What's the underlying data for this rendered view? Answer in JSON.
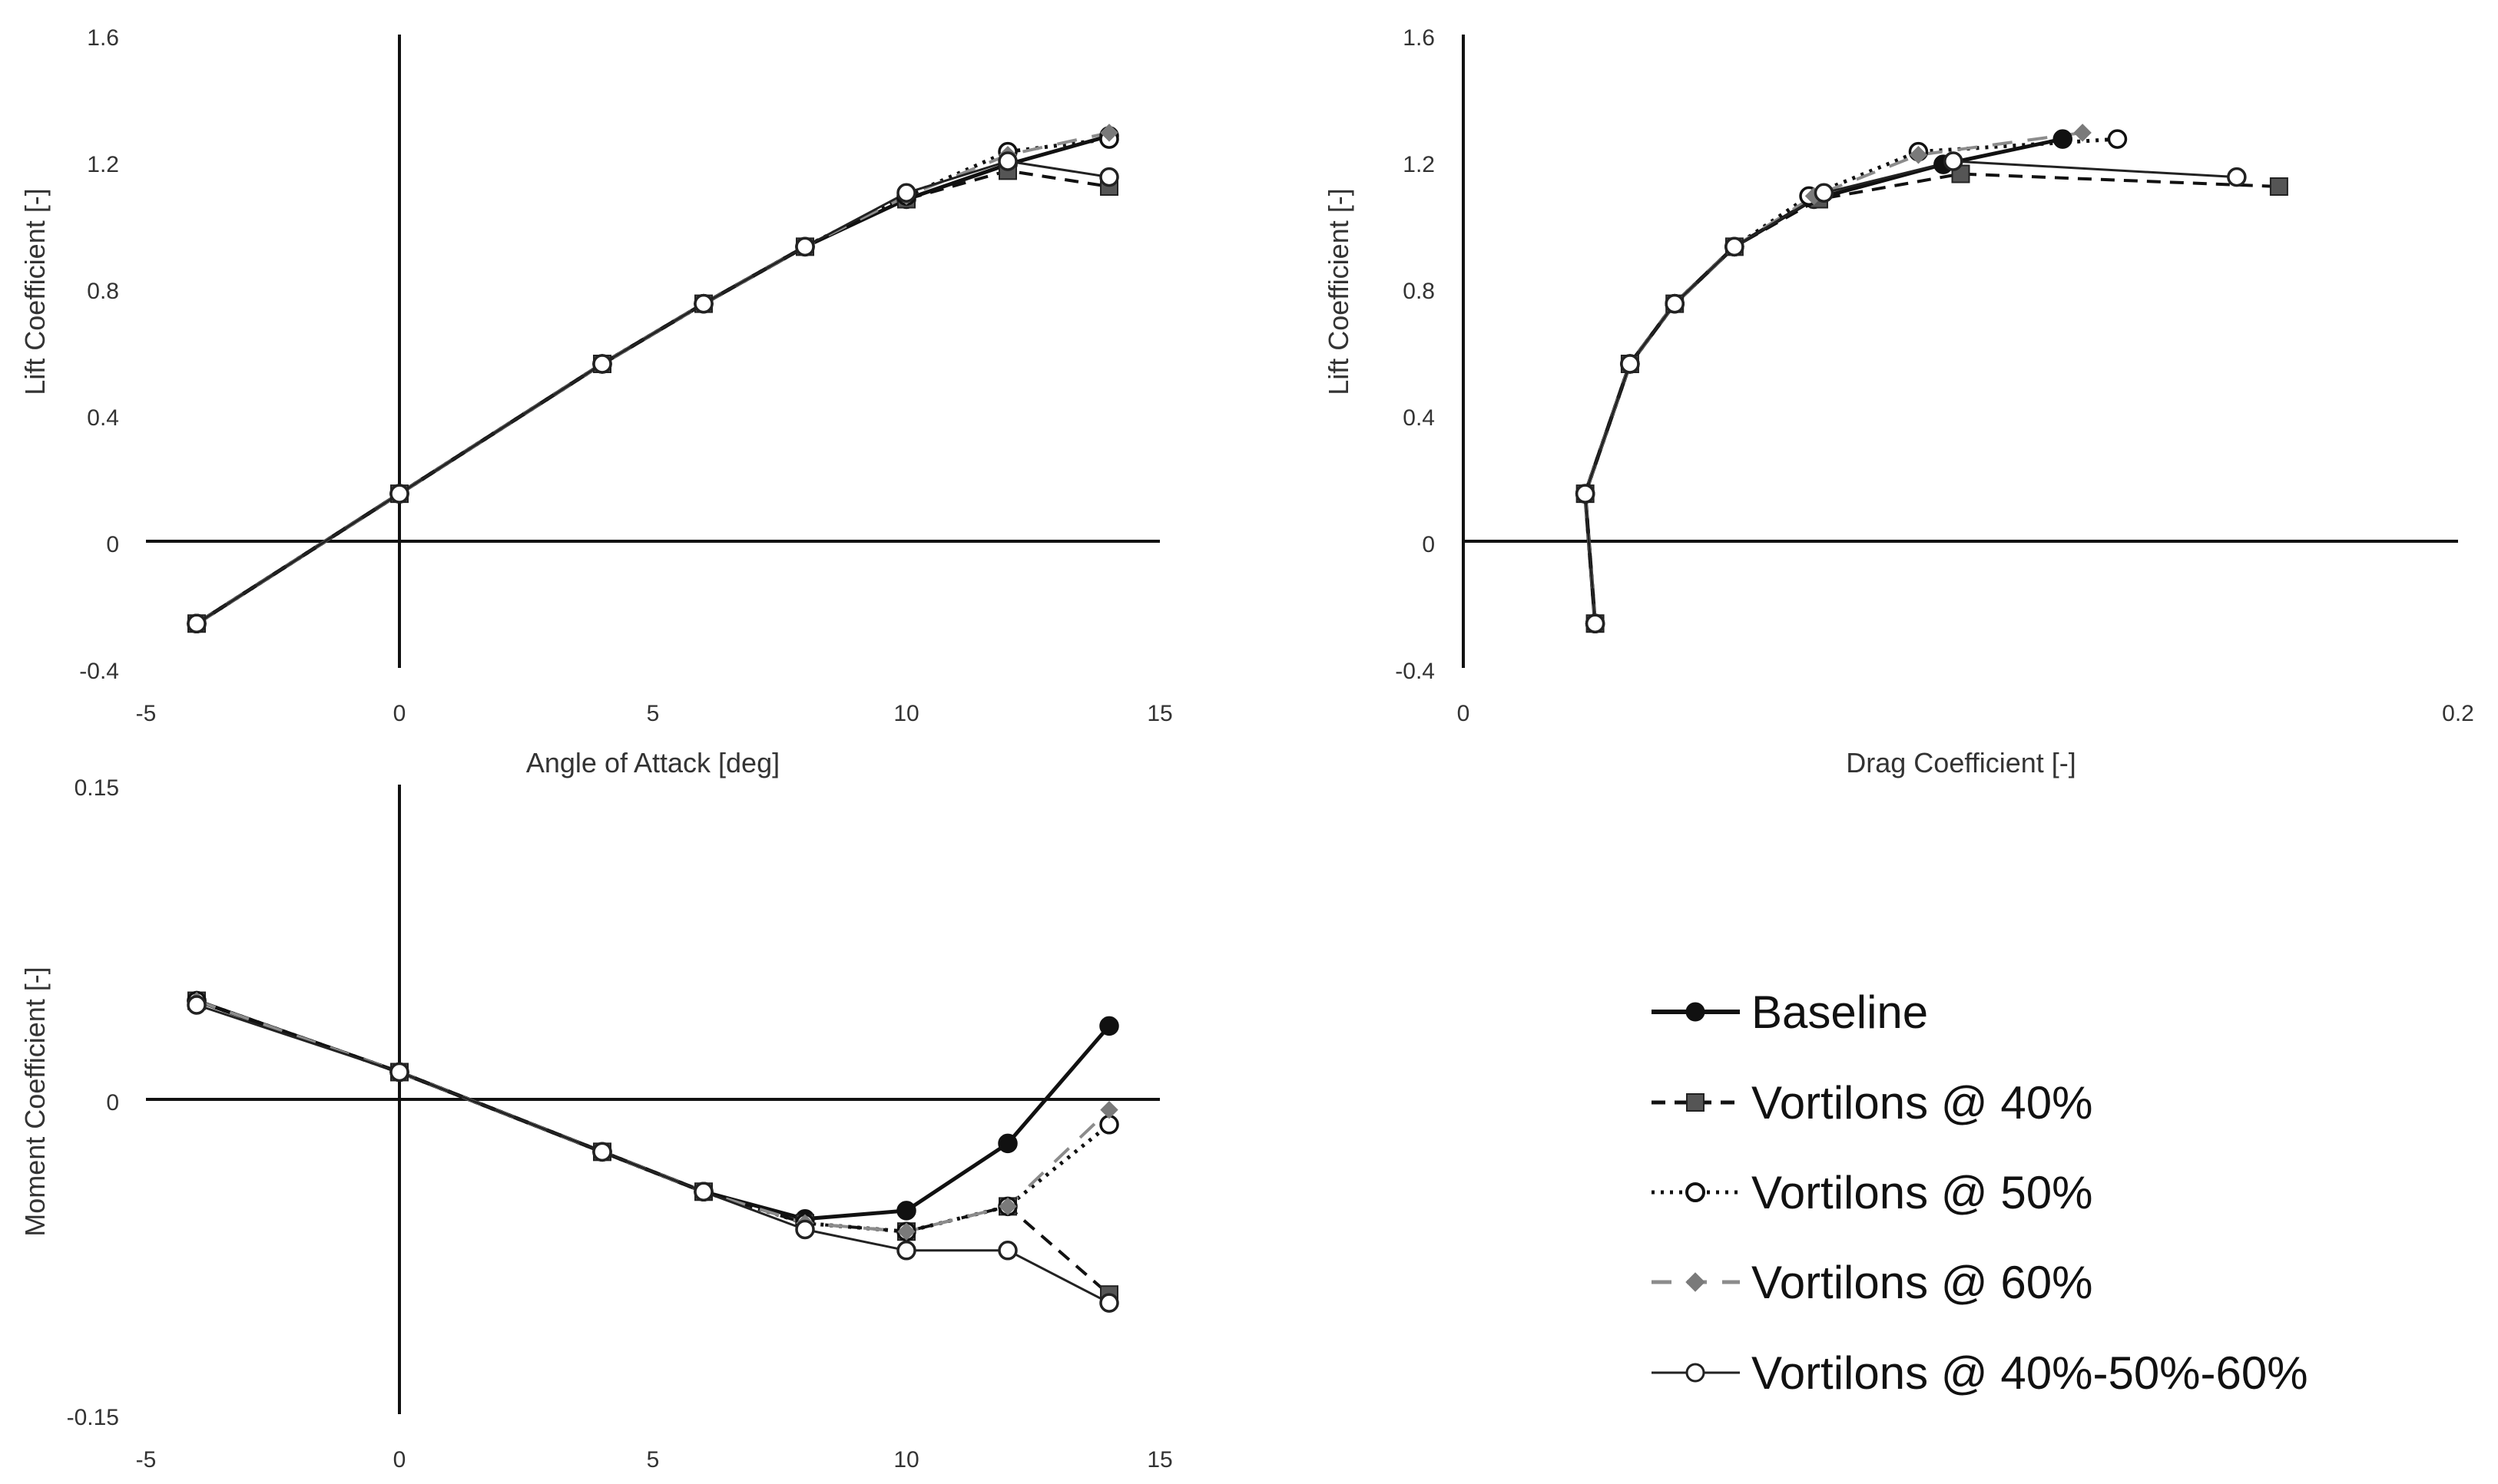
{
  "figure_title": "",
  "colors": {
    "black": "#111111",
    "gray": "#7a7a7a",
    "gray_light": "#8c8c8c",
    "white": "#ffffff"
  },
  "legend": {
    "items": [
      {
        "label": "Baseline"
      },
      {
        "label": "Vortilons @ 40%"
      },
      {
        "label": "Vortilons @ 50%"
      },
      {
        "label": "Vortilons @ 60%"
      },
      {
        "label": "Vortilons @ 40%-50%-60%"
      }
    ]
  },
  "chart_data": [
    {
      "id": "lift_vs_alpha",
      "type": "line",
      "title": "",
      "xlabel": "Angle of Attack [deg]",
      "ylabel": "Lift Coefficient [-]",
      "xlim": [
        -5,
        15
      ],
      "ylim": [
        -0.4,
        1.6
      ],
      "xticks": [
        -5,
        0,
        5,
        10,
        15
      ],
      "yticks": [
        -0.4,
        0,
        0.4,
        0.8,
        1.2,
        1.6
      ],
      "xtick_labels": [
        "-5",
        "0",
        "5",
        "10",
        "15"
      ],
      "ytick_labels": [
        "-0.4",
        "0",
        "0.4",
        "0.8",
        "1.2",
        "1.6"
      ],
      "series": [
        {
          "name": "Baseline",
          "x": [
            -4,
            0,
            4,
            6,
            8,
            10,
            12,
            14
          ],
          "y": [
            -0.26,
            0.15,
            0.56,
            0.75,
            0.93,
            1.08,
            1.19,
            1.28
          ]
        },
        {
          "name": "Vortilons @ 40%",
          "x": [
            -4,
            0,
            4,
            6,
            8,
            10,
            12,
            14
          ],
          "y": [
            -0.26,
            0.15,
            0.56,
            0.75,
            0.93,
            1.08,
            1.17,
            1.12
          ]
        },
        {
          "name": "Vortilons @ 50%",
          "x": [
            -4,
            0,
            4,
            6,
            8,
            10,
            12,
            14
          ],
          "y": [
            -0.26,
            0.15,
            0.56,
            0.75,
            0.93,
            1.09,
            1.23,
            1.27
          ]
        },
        {
          "name": "Vortilons @ 60%",
          "x": [
            -4,
            0,
            4,
            6,
            8,
            10,
            12,
            14
          ],
          "y": [
            -0.26,
            0.15,
            0.56,
            0.75,
            0.93,
            1.09,
            1.22,
            1.29
          ]
        },
        {
          "name": "Vortilons @ 40%-50%-60%",
          "x": [
            -4,
            0,
            4,
            6,
            8,
            10,
            12,
            14
          ],
          "y": [
            -0.26,
            0.15,
            0.56,
            0.75,
            0.93,
            1.1,
            1.2,
            1.15
          ]
        }
      ]
    },
    {
      "id": "lift_vs_drag",
      "type": "line",
      "title": "",
      "xlabel": "Drag Coefficient [-]",
      "ylabel": "Lift Coefficient [-]",
      "xlim": [
        0,
        0.2
      ],
      "ylim": [
        -0.4,
        1.6
      ],
      "xticks": [
        0,
        0.2
      ],
      "yticks": [
        -0.4,
        0,
        0.4,
        0.8,
        1.2,
        1.6
      ],
      "xtick_labels": [
        "0",
        "0.2"
      ],
      "ytick_labels": [
        "-0.4",
        "0",
        "0.4",
        "0.8",
        "1.2",
        "1.6"
      ],
      "series": [
        {
          "name": "Baseline",
          "x": [
            0.0265,
            0.0245,
            0.0335,
            0.0425,
            0.0545,
            0.0705,
            0.0965,
            0.1205
          ],
          "y": [
            -0.26,
            0.15,
            0.56,
            0.75,
            0.93,
            1.08,
            1.19,
            1.27
          ]
        },
        {
          "name": "Vortilons @ 40%",
          "x": [
            0.0265,
            0.0245,
            0.0335,
            0.0425,
            0.0545,
            0.0715,
            0.1,
            0.164
          ],
          "y": [
            -0.26,
            0.15,
            0.56,
            0.75,
            0.93,
            1.08,
            1.16,
            1.12
          ]
        },
        {
          "name": "Vortilons @ 50%",
          "x": [
            0.0265,
            0.0245,
            0.0335,
            0.0425,
            0.0545,
            0.0695,
            0.0915,
            0.1315
          ],
          "y": [
            -0.26,
            0.15,
            0.56,
            0.75,
            0.93,
            1.09,
            1.23,
            1.27
          ]
        },
        {
          "name": "Vortilons @ 60%",
          "x": [
            0.0265,
            0.0245,
            0.0335,
            0.0425,
            0.0545,
            0.0705,
            0.0915,
            0.1245
          ],
          "y": [
            -0.26,
            0.15,
            0.56,
            0.75,
            0.93,
            1.09,
            1.22,
            1.29
          ]
        },
        {
          "name": "Vortilons @ 40%-50%-60%",
          "x": [
            0.0265,
            0.0245,
            0.0335,
            0.0425,
            0.0545,
            0.0725,
            0.0985,
            0.1555
          ],
          "y": [
            -0.26,
            0.15,
            0.56,
            0.75,
            0.93,
            1.1,
            1.2,
            1.15
          ]
        }
      ]
    },
    {
      "id": "moment_vs_alpha",
      "type": "line",
      "title": "",
      "xlabel": "",
      "ylabel": "Moment Coefficient [-]",
      "xlim": [
        -5,
        15
      ],
      "ylim": [
        -0.15,
        0.15
      ],
      "xticks": [
        -5,
        0,
        5,
        10,
        15
      ],
      "yticks": [
        -0.15,
        0,
        0.15
      ],
      "xtick_labels": [
        "-5",
        "0",
        "5",
        "10",
        "15"
      ],
      "ytick_labels": [
        "-0.15",
        "0",
        "0.15"
      ],
      "series": [
        {
          "name": "Baseline",
          "x": [
            -4,
            0,
            4,
            6,
            8,
            10,
            12,
            14
          ],
          "y": [
            0.047,
            0.013,
            -0.025,
            -0.044,
            -0.057,
            -0.053,
            -0.021,
            0.035
          ]
        },
        {
          "name": "Vortilons @ 40%",
          "x": [
            -4,
            0,
            4,
            6,
            8,
            10,
            12,
            14
          ],
          "y": [
            0.047,
            0.013,
            -0.025,
            -0.044,
            -0.059,
            -0.063,
            -0.051,
            -0.093
          ]
        },
        {
          "name": "Vortilons @ 50%",
          "x": [
            -4,
            0,
            4,
            6,
            8,
            10,
            12,
            14
          ],
          "y": [
            0.047,
            0.013,
            -0.025,
            -0.044,
            -0.059,
            -0.063,
            -0.051,
            -0.012
          ]
        },
        {
          "name": "Vortilons @ 60%",
          "x": [
            -4,
            0,
            4,
            6,
            8,
            10,
            12,
            14
          ],
          "y": [
            0.047,
            0.013,
            -0.025,
            -0.044,
            -0.059,
            -0.063,
            -0.051,
            -0.005
          ]
        },
        {
          "name": "Vortilons @ 40%-50%-60%",
          "x": [
            -4,
            0,
            4,
            6,
            8,
            10,
            12,
            14
          ],
          "y": [
            0.045,
            0.013,
            -0.025,
            -0.044,
            -0.062,
            -0.072,
            -0.072,
            -0.097
          ]
        }
      ]
    }
  ]
}
